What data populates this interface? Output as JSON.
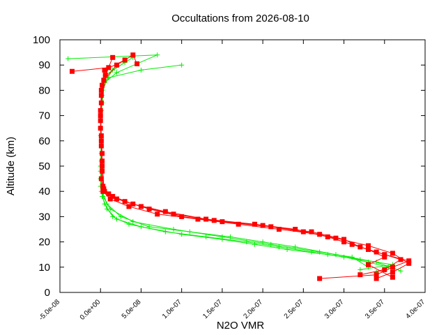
{
  "chart_data": {
    "type": "line",
    "title": "Occultations from 2026-08-10",
    "xlabel": "N2O VMR",
    "ylabel": "Altitude (km)",
    "xlim": [
      -5e-08,
      4e-07
    ],
    "ylim": [
      0,
      100
    ],
    "x_ticks": [
      -5e-08,
      0,
      5e-08,
      1e-07,
      1.5e-07,
      2e-07,
      2.5e-07,
      3e-07,
      3.5e-07,
      4e-07
    ],
    "x_tick_labels": [
      "-5.0e-08",
      "0.0e+00",
      "5.0e-08",
      "1.0e-07",
      "1.5e-07",
      "2.0e-07",
      "2.5e-07",
      "3.0e-07",
      "3.5e-07",
      "4.0e-07"
    ],
    "y_ticks": [
      0,
      10,
      20,
      30,
      40,
      50,
      60,
      70,
      80,
      90,
      100
    ],
    "y_tick_labels": [
      "0",
      "10",
      "20",
      "30",
      "40",
      "50",
      "60",
      "70",
      "80",
      "90",
      "100"
    ],
    "grid": false,
    "legend": "none",
    "colors": {
      "red": "#ff0000",
      "green": "#00ee00",
      "frame": "#000000"
    },
    "series": [
      {
        "color": "#00ee00",
        "marker": "plus",
        "profiles": [
          [
            [
              3.4e-07,
              8
            ],
            [
              3.55e-07,
              10
            ],
            [
              3.3e-07,
              12
            ],
            [
              3e-07,
              14
            ],
            [
              2.6e-07,
              16
            ],
            [
              2.2e-07,
              18
            ],
            [
              1.8e-07,
              20
            ],
            [
              1.3e-07,
              22
            ],
            [
              8e-08,
              24
            ],
            [
              3.5e-08,
              27
            ],
            [
              1.5e-08,
              30
            ],
            [
              5e-09,
              35
            ],
            [
              1e-09,
              40
            ],
            [
              0,
              50
            ],
            [
              1e-09,
              60
            ],
            [
              0,
              70
            ],
            [
              2e-09,
              80
            ],
            [
              1e-08,
              85
            ],
            [
              5e-08,
              88
            ],
            [
              1e-07,
              90
            ]
          ],
          [
            [
              3.2e-07,
              9
            ],
            [
              3.6e-07,
              11
            ],
            [
              3.2e-07,
              13
            ],
            [
              2.8e-07,
              15
            ],
            [
              2.3e-07,
              17
            ],
            [
              1.9e-07,
              19
            ],
            [
              1.5e-07,
              21
            ],
            [
              1e-07,
              23
            ],
            [
              5e-08,
              26
            ],
            [
              2e-08,
              29
            ],
            [
              8e-09,
              33
            ],
            [
              2e-09,
              38
            ],
            [
              0,
              45
            ],
            [
              1e-09,
              55
            ],
            [
              0,
              65
            ],
            [
              2e-09,
              75
            ],
            [
              5e-09,
              83
            ],
            [
              2e-08,
              87
            ],
            [
              7e-08,
              94
            ],
            [
              -4e-08,
              92.5
            ]
          ],
          [
            [
              3.7e-07,
              8.5
            ],
            [
              3.4e-07,
              12
            ],
            [
              2.9e-07,
              15
            ],
            [
              2.4e-07,
              18
            ],
            [
              2e-07,
              20
            ],
            [
              1.6e-07,
              22
            ],
            [
              1.1e-07,
              24
            ],
            [
              6e-08,
              26
            ],
            [
              2.5e-08,
              30
            ],
            [
              8e-09,
              35
            ],
            [
              0,
              42
            ],
            [
              1e-09,
              52
            ],
            [
              0,
              62
            ],
            [
              1e-09,
              72
            ],
            [
              3e-09,
              82
            ],
            [
              1.5e-08,
              88
            ],
            [
              4e-08,
              93
            ]
          ],
          [
            [
              3.3e-07,
              10
            ],
            [
              3.1e-07,
              14
            ],
            [
              2.7e-07,
              16
            ],
            [
              2.1e-07,
              19
            ],
            [
              1.5e-07,
              22
            ],
            [
              9e-08,
              25
            ],
            [
              4e-08,
              28
            ],
            [
              1.2e-08,
              33
            ],
            [
              3e-09,
              38
            ],
            [
              0,
              48
            ],
            [
              1e-09,
              58
            ],
            [
              0,
              68
            ],
            [
              2e-09,
              78
            ],
            [
              6e-09,
              86
            ],
            [
              3e-08,
              91
            ]
          ]
        ]
      },
      {
        "color": "#ff0000",
        "marker": "square",
        "profiles": [
          [
            [
              2.7e-07,
              5.5
            ],
            [
              3.4e-07,
              7
            ],
            [
              3.6e-07,
              10
            ],
            [
              3.8e-07,
              12.5
            ],
            [
              3.5e-07,
              15
            ],
            [
              3.2e-07,
              18
            ],
            [
              3e-07,
              21
            ],
            [
              2.6e-07,
              24
            ],
            [
              2.1e-07,
              26
            ],
            [
              1.5e-07,
              28
            ],
            [
              1e-07,
              30
            ],
            [
              6e-08,
              33
            ],
            [
              3e-08,
              36
            ],
            [
              1e-08,
              39
            ],
            [
              3e-09,
              42
            ],
            [
              2e-09,
              50
            ],
            [
              1e-09,
              60
            ],
            [
              0,
              70
            ],
            [
              1e-09,
              80
            ],
            [
              5e-09,
              88
            ],
            [
              3e-08,
              92
            ]
          ],
          [
            [
              3.2e-07,
              7
            ],
            [
              3.5e-07,
              9
            ],
            [
              3.7e-07,
              13
            ],
            [
              3.4e-07,
              16
            ],
            [
              3.1e-07,
              19
            ],
            [
              2.8e-07,
              22
            ],
            [
              2.4e-07,
              25
            ],
            [
              1.9e-07,
              27
            ],
            [
              1.3e-07,
              29
            ],
            [
              8e-08,
              32
            ],
            [
              4e-08,
              35
            ],
            [
              1.5e-08,
              38
            ],
            [
              4e-09,
              41
            ],
            [
              2e-09,
              52
            ],
            [
              1e-09,
              62
            ],
            [
              0,
              72
            ],
            [
              2e-09,
              82
            ],
            [
              1e-08,
              89
            ],
            [
              -3.5e-08,
              87.5
            ]
          ],
          [
            [
              3.6e-07,
              6
            ],
            [
              3.3e-07,
              11
            ],
            [
              3.5e-07,
              14
            ],
            [
              3.3e-07,
              17
            ],
            [
              3e-07,
              20
            ],
            [
              2.7e-07,
              23
            ],
            [
              2.2e-07,
              25
            ],
            [
              1.7e-07,
              27
            ],
            [
              1.2e-07,
              29
            ],
            [
              7e-08,
              31
            ],
            [
              3.5e-08,
              34
            ],
            [
              1.2e-08,
              37
            ],
            [
              3e-09,
              40
            ],
            [
              1e-09,
              45
            ],
            [
              2e-09,
              55
            ],
            [
              0,
              65
            ],
            [
              1e-09,
              75
            ],
            [
              4e-09,
              84
            ],
            [
              2e-08,
              90
            ],
            [
              4e-08,
              94
            ],
            [
              4.5e-08,
              90.5
            ]
          ],
          [
            [
              3.4e-07,
              5.5
            ],
            [
              3.6e-07,
              8
            ],
            [
              3.8e-07,
              11.5
            ],
            [
              3.6e-07,
              15.5
            ],
            [
              3.3e-07,
              18.5
            ],
            [
              2.9e-07,
              21.5
            ],
            [
              2.5e-07,
              24
            ],
            [
              2e-07,
              26.5
            ],
            [
              1.4e-07,
              28.5
            ],
            [
              9e-08,
              31
            ],
            [
              5e-08,
              34
            ],
            [
              2e-08,
              37
            ],
            [
              5e-09,
              40
            ],
            [
              2e-09,
              48
            ],
            [
              1e-09,
              58
            ],
            [
              0,
              68
            ],
            [
              1e-09,
              78
            ],
            [
              6e-09,
              86
            ],
            [
              1.5e-08,
              93
            ]
          ]
        ]
      }
    ]
  }
}
